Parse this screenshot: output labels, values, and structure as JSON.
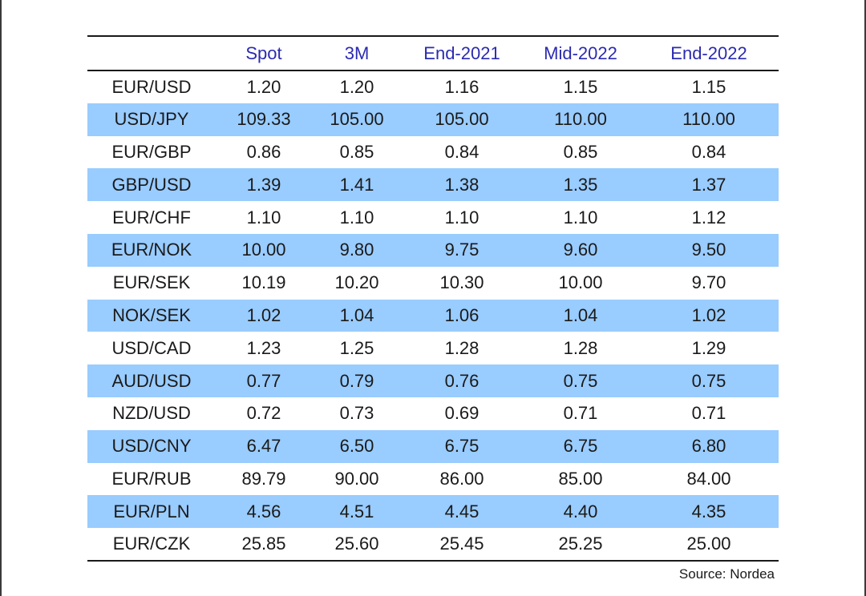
{
  "table": {
    "headers": [
      "",
      "Spot",
      "3M",
      "End-2021",
      "Mid-2022",
      "End-2022"
    ],
    "rows": [
      {
        "pair": "EUR/USD",
        "values": [
          "1.20",
          "1.20",
          "1.16",
          "1.15",
          "1.15"
        ],
        "shaded": false
      },
      {
        "pair": "USD/JPY",
        "values": [
          "109.33",
          "105.00",
          "105.00",
          "110.00",
          "110.00"
        ],
        "shaded": true
      },
      {
        "pair": "EUR/GBP",
        "values": [
          "0.86",
          "0.85",
          "0.84",
          "0.85",
          "0.84"
        ],
        "shaded": false
      },
      {
        "pair": "GBP/USD",
        "values": [
          "1.39",
          "1.41",
          "1.38",
          "1.35",
          "1.37"
        ],
        "shaded": true
      },
      {
        "pair": "EUR/CHF",
        "values": [
          "1.10",
          "1.10",
          "1.10",
          "1.10",
          "1.12"
        ],
        "shaded": false
      },
      {
        "pair": "EUR/NOK",
        "values": [
          "10.00",
          "9.80",
          "9.75",
          "9.60",
          "9.50"
        ],
        "shaded": true
      },
      {
        "pair": "EUR/SEK",
        "values": [
          "10.19",
          "10.20",
          "10.30",
          "10.00",
          "9.70"
        ],
        "shaded": false
      },
      {
        "pair": "NOK/SEK",
        "values": [
          "1.02",
          "1.04",
          "1.06",
          "1.04",
          "1.02"
        ],
        "shaded": true
      },
      {
        "pair": "USD/CAD",
        "values": [
          "1.23",
          "1.25",
          "1.28",
          "1.28",
          "1.29"
        ],
        "shaded": false
      },
      {
        "pair": "AUD/USD",
        "values": [
          "0.77",
          "0.79",
          "0.76",
          "0.75",
          "0.75"
        ],
        "shaded": true
      },
      {
        "pair": "NZD/USD",
        "values": [
          "0.72",
          "0.73",
          "0.69",
          "0.71",
          "0.71"
        ],
        "shaded": false
      },
      {
        "pair": "USD/CNY",
        "values": [
          "6.47",
          "6.50",
          "6.75",
          "6.75",
          "6.80"
        ],
        "shaded": true
      },
      {
        "pair": "EUR/RUB",
        "values": [
          "89.79",
          "90.00",
          "86.00",
          "85.00",
          "84.00"
        ],
        "shaded": false
      },
      {
        "pair": "EUR/PLN",
        "values": [
          "4.56",
          "4.51",
          "4.45",
          "4.40",
          "4.35"
        ],
        "shaded": true
      },
      {
        "pair": "EUR/CZK",
        "values": [
          "25.85",
          "25.60",
          "25.45",
          "25.25",
          "25.00"
        ],
        "shaded": false
      }
    ]
  },
  "source": "Source: Nordea",
  "colors": {
    "header_text": "#2b2bb0",
    "row_shading": "#99ccff"
  }
}
